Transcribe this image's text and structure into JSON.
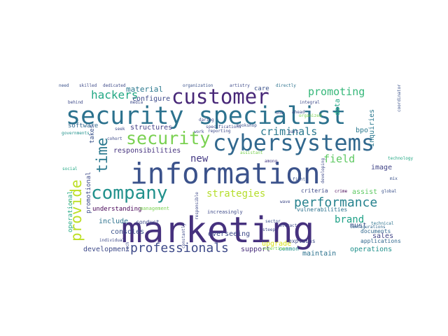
{
  "words": [
    {
      "text": "information",
      "color": "#3b528b"
    },
    {
      "text": "marketing",
      "color": "#46317e"
    },
    {
      "text": "security specialist",
      "color": "#2c728e"
    },
    {
      "text": "cybersystems",
      "color": "#31688e"
    },
    {
      "text": "customer",
      "color": "#482878"
    },
    {
      "text": "company",
      "color": "#21918c"
    },
    {
      "text": "security",
      "color": "#7ad151"
    },
    {
      "text": "provide",
      "color": "#bddf26"
    },
    {
      "text": "time",
      "color": "#2a788e"
    },
    {
      "text": "professionals",
      "color": "#3e4a89"
    },
    {
      "text": "performance",
      "color": "#26828e"
    },
    {
      "text": "hackers",
      "color": "#22a884"
    },
    {
      "text": "promoting",
      "color": "#35b779"
    },
    {
      "text": "criminals",
      "color": "#2a788e"
    },
    {
      "text": "strategies",
      "color": "#b5de2b"
    },
    {
      "text": "brand",
      "color": "#1fa187"
    },
    {
      "text": "field",
      "color": "#5ec962"
    },
    {
      "text": "new",
      "color": "#443983"
    },
    {
      "text": "material",
      "color": "#2a788e"
    },
    {
      "text": "configure",
      "color": "#3e4a89"
    },
    {
      "text": "responsibilities",
      "color": "#46337f"
    },
    {
      "text": "structures",
      "color": "#433e85"
    },
    {
      "text": "development",
      "color": "#3e4a89"
    },
    {
      "text": "include",
      "color": "#2c728e"
    },
    {
      "text": "consoles",
      "color": "#3b528b"
    },
    {
      "text": "understanding",
      "color": "#440154"
    },
    {
      "text": "support",
      "color": "#472d7b"
    },
    {
      "text": "overseeing",
      "color": "#3e4a89"
    },
    {
      "text": "upgrade",
      "color": "#d8e219"
    },
    {
      "text": "maintain",
      "color": "#2c728e"
    },
    {
      "text": "operations",
      "color": "#21918c"
    },
    {
      "text": "sales",
      "color": "#414487"
    },
    {
      "text": "must",
      "color": "#3b528b"
    },
    {
      "text": "assist",
      "color": "#5ec962"
    },
    {
      "text": "image",
      "color": "#414487"
    },
    {
      "text": "bpo",
      "color": "#2a788e"
    },
    {
      "text": "inquiries",
      "color": "#2a788e"
    },
    {
      "text": "data",
      "color": "#22a884"
    },
    {
      "text": "care",
      "color": "#3b528b"
    },
    {
      "text": "software",
      "color": "#31688e"
    },
    {
      "text": "takes",
      "color": "#3b528b"
    },
    {
      "text": "promotional",
      "color": "#3e4a89"
    },
    {
      "text": "operational",
      "color": "#22a884"
    },
    {
      "text": "explains",
      "color": "#3e4a89"
    },
    {
      "text": "common",
      "color": "#21918c"
    },
    {
      "text": "documents",
      "color": "#31688e"
    },
    {
      "text": "applications",
      "color": "#31688e"
    },
    {
      "text": "vulnerabilities",
      "color": "#2c728e"
    },
    {
      "text": "criteria",
      "color": "#3e4a89"
    },
    {
      "text": "conduct",
      "color": "#3e4a89"
    },
    {
      "text": "management",
      "color": "#7ad151"
    },
    {
      "text": "increasingly",
      "color": "#3e4a89"
    },
    {
      "text": "configurations",
      "color": "#31688e"
    },
    {
      "text": "technical",
      "color": "#2c728e"
    },
    {
      "text": "global",
      "color": "#3b528b"
    },
    {
      "text": "crime",
      "color": "#440154"
    },
    {
      "text": "among",
      "color": "#443983"
    },
    {
      "text": "reporting",
      "color": "#3e4a89"
    },
    {
      "text": "bookshop",
      "color": "#3b528b"
    },
    {
      "text": "work",
      "color": "#3e4a89"
    },
    {
      "text": "daring",
      "color": "#3e4a89"
    },
    {
      "text": "need",
      "color": "#3b528b"
    },
    {
      "text": "skilled",
      "color": "#3e4a89"
    },
    {
      "text": "dedicated",
      "color": "#3e4a89"
    },
    {
      "text": "organization",
      "color": "#3b528b"
    },
    {
      "text": "artistry",
      "color": "#3e4a89"
    },
    {
      "text": "directly",
      "color": "#2c728e"
    },
    {
      "text": "integral",
      "color": "#3e4a89"
    },
    {
      "text": "coordinator",
      "color": "#3b528b"
    },
    {
      "text": "specifications",
      "color": "#3e4a89"
    },
    {
      "text": "media",
      "color": "#3e4a89"
    },
    {
      "text": "behind",
      "color": "#3e4a89"
    },
    {
      "text": "governments",
      "color": "#21918c"
    },
    {
      "text": "social",
      "color": "#22a884"
    },
    {
      "text": "technology",
      "color": "#22a884"
    },
    {
      "text": "cohort",
      "color": "#3e4a89"
    },
    {
      "text": "part",
      "color": "#3e4a89"
    },
    {
      "text": "fight",
      "color": "#3b528b"
    },
    {
      "text": "mix",
      "color": "#3b528b"
    },
    {
      "text": "steep",
      "color": "#3e4a89"
    },
    {
      "text": "sector",
      "color": "#3b528b"
    },
    {
      "text": "individual",
      "color": "#3e4a89"
    },
    {
      "text": "expertise",
      "color": "#7ad151"
    },
    {
      "text": "attract",
      "color": "#3e4a89"
    },
    {
      "text": "constantly",
      "color": "#3e4a89"
    },
    {
      "text": "responsible",
      "color": "#3e4a89"
    },
    {
      "text": "tech",
      "color": "#3e4a89"
    },
    {
      "text": "assistant",
      "color": "#7ad151"
    },
    {
      "text": "developing",
      "color": "#3e4a89"
    },
    {
      "text": "wave",
      "color": "#3e4a89"
    },
    {
      "text": "ahead",
      "color": "#3e4a89"
    },
    {
      "text": "organized",
      "color": "#7ad151"
    },
    {
      "text": "seek",
      "color": "#3e4a89"
    },
    {
      "text": "one",
      "color": "#3e4a89"
    }
  ]
}
